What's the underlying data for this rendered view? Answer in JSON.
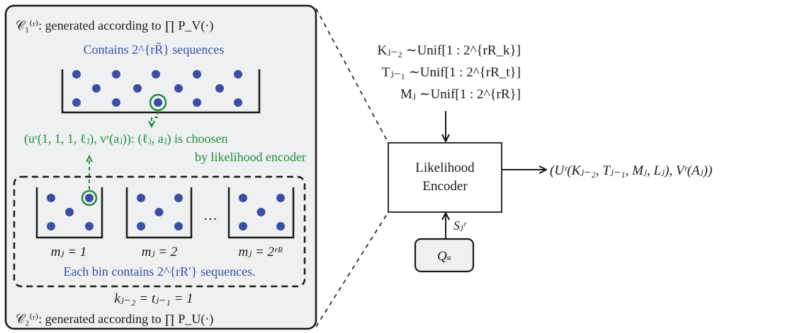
{
  "colors": {
    "panel_fill": "#eff0f1",
    "ink": "#1a1a1a",
    "dot_blue": "#3b4ea6",
    "text_blue": "#3b4ea6",
    "highlight_green": "#1f8f3a"
  },
  "left_panel": {
    "codebook1_label": "𝒞₁⁽ʳ⁾: generated according to ∏ P_V(·)",
    "codebook1_count": "Contains 2^{rR̃} sequences",
    "selection_line1": "(uʳ(1, 1, 1, ℓⱼ), vʳ(aⱼ)): (ℓⱼ, aⱼ) is choosen",
    "selection_line2": "by likelihood encoder",
    "bin_labels": [
      "mⱼ = 1",
      "mⱼ = 2",
      "mⱼ = 2ʳᴿ"
    ],
    "bin_ellipsis": "…",
    "bins_caption": "Each bin contains 2^{rR′} sequences.",
    "index_condition": "kⱼ₋₂ = tⱼ₋₁ = 1",
    "codebook2_label": "𝒞₂⁽ʳ⁾: generated according to ∏ P_U(·)"
  },
  "right_side": {
    "input_lines": [
      "Kⱼ₋₂ ∼Unif[1 : 2^{rR_k}]",
      "Tⱼ₋₁ ∼Unif[1 : 2^{rR_t}]",
      "Mⱼ ∼Unif[1 : 2^{rR}]"
    ],
    "encoder_line1": "Likelihood",
    "encoder_line2": "Encoder",
    "output_label": "(Uʳ(Kⱼ₋₂, Tⱼ₋₁, Mⱼ, Lⱼ), Vʳ(Aⱼ))",
    "side_info_label": "Sⱼʳ",
    "source_label": "Qₛ"
  }
}
